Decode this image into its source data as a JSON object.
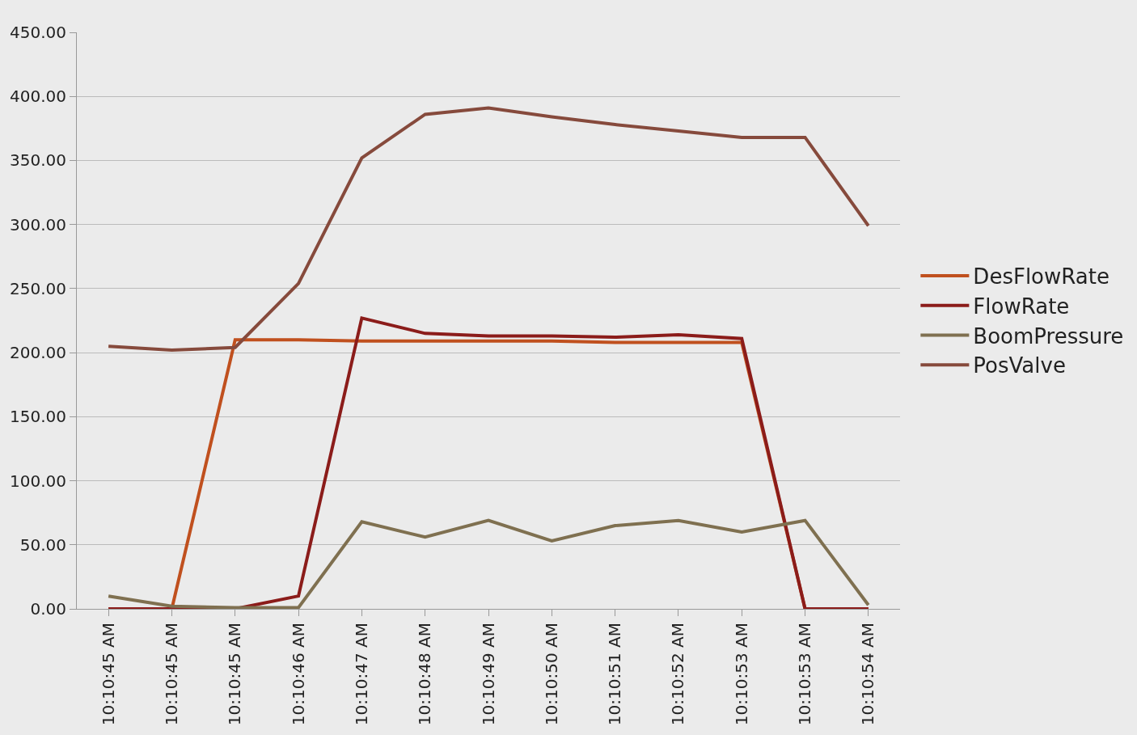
{
  "chart_data": {
    "type": "line",
    "categories": [
      "10:10:45 AM",
      "10:10:45 AM",
      "10:10:45 AM",
      "10:10:46 AM",
      "10:10:47 AM",
      "10:10:48 AM",
      "10:10:49 AM",
      "10:10:50 AM",
      "10:10:51 AM",
      "10:10:52 AM",
      "10:10:53 AM",
      "10:10:53 AM",
      "10:10:54 AM"
    ],
    "series": [
      {
        "name": "DesFlowRate",
        "color": "#c0501e",
        "values": [
          0,
          0,
          210,
          210,
          209,
          209,
          209,
          209,
          208,
          208,
          208,
          0,
          0
        ]
      },
      {
        "name": "FlowRate",
        "color": "#8b1c1a",
        "values": [
          0,
          0,
          0,
          10,
          227,
          215,
          213,
          213,
          212,
          214,
          211,
          0,
          0
        ]
      },
      {
        "name": "BoomPressure",
        "color": "#7f7050",
        "values": [
          10,
          2,
          1,
          1,
          68,
          56,
          69,
          53,
          65,
          69,
          60,
          69,
          3
        ]
      },
      {
        "name": "PosValve",
        "color": "#864a3c",
        "values": [
          205,
          202,
          204,
          254,
          352,
          386,
          391,
          384,
          378,
          373,
          368,
          368,
          299
        ]
      }
    ],
    "ylim": [
      0,
      450
    ],
    "yticks": [
      {
        "value": 0,
        "label": "0.00"
      },
      {
        "value": 50,
        "label": "50.00"
      },
      {
        "value": 100,
        "label": "100.00"
      },
      {
        "value": 150,
        "label": "150.00"
      },
      {
        "value": 200,
        "label": "200.00"
      },
      {
        "value": 250,
        "label": "250.00"
      },
      {
        "value": 300,
        "label": "300.00"
      },
      {
        "value": 350,
        "label": "350.00"
      },
      {
        "value": 400,
        "label": "400.00"
      },
      {
        "value": 450,
        "label": "450.00"
      }
    ],
    "grid": "y",
    "legend": "right",
    "marker": "none",
    "line_style": "solid"
  }
}
